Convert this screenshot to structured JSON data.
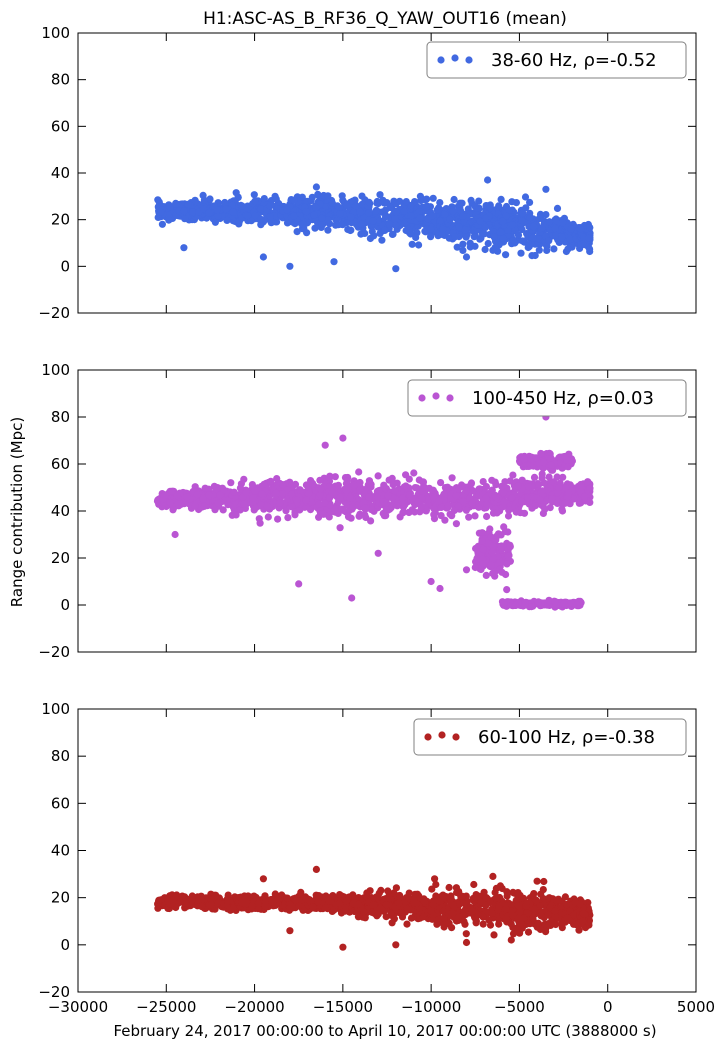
{
  "chart_data": [
    {
      "type": "scatter",
      "title": "H1:ASC-AS_B_RF36_Q_YAW_OUT16 (mean)",
      "xlim": [
        -30000,
        5000
      ],
      "ylim": [
        -20,
        100
      ],
      "yticks": [
        -20,
        0,
        20,
        40,
        60,
        80,
        100
      ],
      "color": "#4169e1",
      "legend": {
        "label": "38-60 Hz, ρ=-0.52",
        "position": "top-right"
      },
      "x_range": [
        -25500,
        -1000
      ],
      "trend": [
        [
          -25500,
          24
        ],
        [
          -18000,
          23
        ],
        [
          -10000,
          20
        ],
        [
          -5000,
          17
        ],
        [
          -1000,
          13
        ]
      ],
      "spread": [
        [
          -25500,
          3
        ],
        [
          -15000,
          7
        ],
        [
          -10000,
          7
        ],
        [
          -5000,
          9
        ],
        [
          -1000,
          4
        ]
      ],
      "band_ylim": [
        -2,
        32
      ],
      "outliers": [
        [
          -24000,
          8
        ],
        [
          -16500,
          34
        ],
        [
          -6800,
          37
        ],
        [
          -3500,
          33
        ],
        [
          -19500,
          4
        ],
        [
          -18000,
          0
        ],
        [
          -15500,
          2
        ],
        [
          -12000,
          -1
        ],
        [
          -8000,
          4
        ]
      ]
    },
    {
      "type": "scatter",
      "title": "",
      "xlim": [
        -30000,
        5000
      ],
      "ylim": [
        -20,
        100
      ],
      "yticks": [
        -20,
        0,
        20,
        40,
        60,
        80,
        100
      ],
      "ylabel": "Range contribution (Mpc)",
      "color": "#ba55d3",
      "legend": {
        "label": "100-450 Hz, ρ=0.03",
        "position": "top-right"
      },
      "x_range": [
        -25500,
        -1000
      ],
      "trend": [
        [
          -25500,
          45
        ],
        [
          -15000,
          46
        ],
        [
          -10000,
          45
        ],
        [
          -5000,
          46
        ],
        [
          -1000,
          48
        ]
      ],
      "spread": [
        [
          -25500,
          3
        ],
        [
          -15000,
          8
        ],
        [
          -10000,
          5
        ],
        [
          -5000,
          8
        ],
        [
          -1000,
          3
        ]
      ],
      "band_ylim": [
        0,
        66
      ],
      "outliers": [
        [
          -15000,
          71
        ],
        [
          -17500,
          9
        ],
        [
          -14500,
          3
        ],
        [
          -10000,
          10
        ],
        [
          -9500,
          7
        ],
        [
          -3500,
          80
        ],
        [
          -24500,
          30
        ],
        [
          -16000,
          68
        ],
        [
          -13000,
          22
        ],
        [
          -8000,
          15
        ],
        [
          -6500,
          25
        ]
      ],
      "extra_groups": [
        {
          "x_range": [
            -6000,
            -1500
          ],
          "y_center": 0.5,
          "y_spread": 1.2
        },
        {
          "x_range": [
            -5000,
            -2000
          ],
          "y_center": 61,
          "y_spread": 3
        },
        {
          "x_range": [
            -7500,
            -5500
          ],
          "y_center": 22,
          "y_spread": 10
        }
      ]
    },
    {
      "type": "scatter",
      "title": "",
      "xlim": [
        -30000,
        5000
      ],
      "ylim": [
        -20,
        100
      ],
      "yticks": [
        -20,
        0,
        20,
        40,
        60,
        80,
        100
      ],
      "xticks": [
        -30000,
        -25000,
        -20000,
        -15000,
        -10000,
        -5000,
        0,
        5000
      ],
      "xlabel": "February 24, 2017 00:00:00 to April 10, 2017 00:00:00 UTC (3888000 s)",
      "color": "#b22222",
      "legend": {
        "label": "60-100 Hz, ρ=-0.38",
        "position": "top-right"
      },
      "x_range": [
        -25500,
        -1000
      ],
      "trend": [
        [
          -25500,
          18
        ],
        [
          -18000,
          18
        ],
        [
          -10000,
          16
        ],
        [
          -5000,
          15
        ],
        [
          -1000,
          13
        ]
      ],
      "spread": [
        [
          -25500,
          2
        ],
        [
          -16000,
          3
        ],
        [
          -10000,
          6
        ],
        [
          -5000,
          8
        ],
        [
          -1000,
          4
        ]
      ],
      "band_ylim": [
        -2,
        28
      ],
      "outliers": [
        [
          -16500,
          32
        ],
        [
          -19500,
          28
        ],
        [
          -6500,
          29
        ],
        [
          -4000,
          27
        ],
        [
          -15000,
          -1
        ],
        [
          -12000,
          0
        ],
        [
          -8000,
          1
        ],
        [
          -18000,
          6
        ]
      ]
    }
  ]
}
